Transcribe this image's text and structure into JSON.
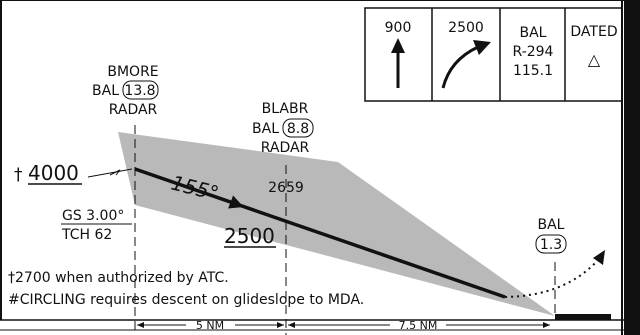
{
  "missed_approach_box": {
    "climb_altitude_1": "900",
    "climb_altitude_2": "2500",
    "nav_station": "BAL",
    "nav_radial": "R-294",
    "nav_frequency": "115.1",
    "dated_label": "DATED",
    "dated_symbol": "△"
  },
  "fixes": {
    "bmore": {
      "name": "BMORE",
      "ref": "BAL",
      "dme": "13.8",
      "type": "RADAR"
    },
    "blabr": {
      "name": "BLABR",
      "ref": "BAL",
      "dme": "8.8",
      "type": "RADAR"
    },
    "bal": {
      "name": "BAL",
      "dme": "1.3"
    }
  },
  "profile": {
    "initial_altitude_marker": "†",
    "initial_altitude": "4000",
    "course": "155°",
    "fix_altitude": "2659",
    "fap_altitude": "2500",
    "glideslope": "GS 3.00°",
    "tch": "TCH 62"
  },
  "notes": {
    "note_1": "†2700 when authorized by ATC.",
    "note_2": "#CIRCLING requires descent on glideslope to MDA."
  },
  "distances": {
    "segment_1": "5 NM",
    "segment_2": "7.5 NM"
  }
}
